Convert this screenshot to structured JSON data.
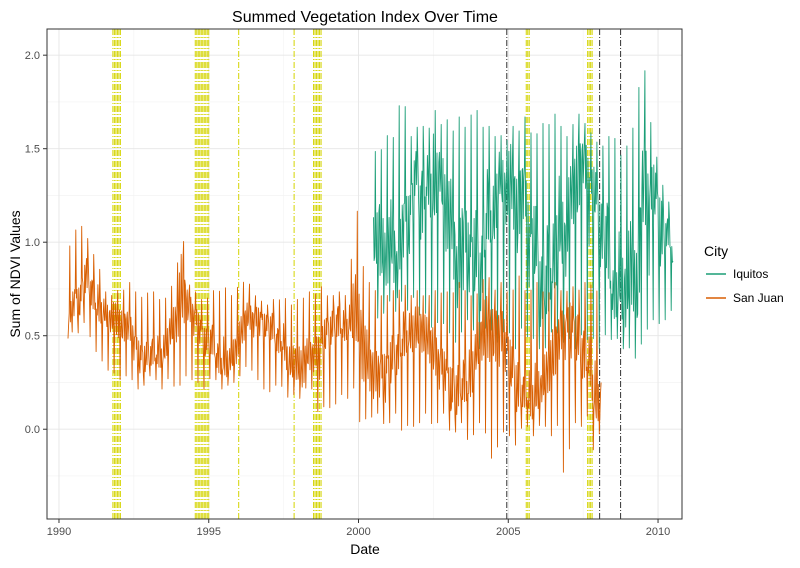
{
  "chart_data": {
    "type": "line",
    "title": "Summed Vegetation Index Over Time",
    "xlabel": "Date",
    "ylabel": "Sum of NDVI Values",
    "x_ticks": [
      1990,
      1995,
      2000,
      2005,
      2010
    ],
    "y_ticks": [
      0.0,
      0.5,
      1.0,
      1.5,
      2.0
    ],
    "y_tick_labels": [
      "0.0",
      "0.5",
      "1.0",
      "1.5",
      "2.0"
    ],
    "xlim": [
      1989.6,
      2010.8
    ],
    "ylim": [
      -0.48,
      2.14
    ],
    "grid": true,
    "legend": {
      "title": "City",
      "position": "right",
      "entries": [
        "Iquitos",
        "San Juan"
      ]
    },
    "series": [
      {
        "name": "Iquitos",
        "color": "#1b9e77",
        "x": [
          2000.5,
          2000.7,
          2000.9,
          2001.1,
          2001.3,
          2001.5,
          2001.7,
          2001.9,
          2002.1,
          2002.3,
          2002.5,
          2002.7,
          2002.9,
          2003.1,
          2003.3,
          2003.5,
          2003.7,
          2003.9,
          2004.1,
          2004.3,
          2004.5,
          2004.7,
          2004.9,
          2005.1,
          2005.3,
          2005.5,
          2005.7,
          2005.9,
          2006.1,
          2006.3,
          2006.5,
          2006.7,
          2006.9,
          2007.1,
          2007.3,
          2007.5,
          2007.7,
          2007.9,
          2008.1,
          2008.3,
          2008.5,
          2008.7,
          2008.9,
          2009.1,
          2009.3,
          2009.5,
          2009.7,
          2009.9,
          2010.1,
          2010.3,
          2010.5
        ],
        "y": [
          0.95,
          1.2,
          1.05,
          1.3,
          0.98,
          1.25,
          1.1,
          1.4,
          1.0,
          1.22,
          0.95,
          1.3,
          1.05,
          1.25,
          0.9,
          1.35,
          1.1,
          1.2,
          0.95,
          1.3,
          1.0,
          1.25,
          1.05,
          1.15,
          0.92,
          1.3,
          1.0,
          1.2,
          0.95,
          1.25,
          1.1,
          1.3,
          0.95,
          1.2,
          1.05,
          1.28,
          0.95,
          1.15,
          1.0,
          1.2,
          0.85,
          1.1,
          0.95,
          1.15,
          0.7,
          1.3,
          0.85,
          1.1,
          0.75,
          1.0,
          0.9
        ],
        "min": [
          0.7,
          0.55,
          0.65,
          0.7,
          0.6,
          0.72,
          0.6,
          0.75,
          0.55,
          0.65,
          0.5,
          0.6,
          0.55,
          0.5,
          0.45,
          0.55,
          0.6,
          0.5,
          0.4,
          0.6,
          0.5,
          0.45,
          0.55,
          0.5,
          0.4,
          0.6,
          0.45,
          0.5,
          0.4,
          0.45,
          0.55,
          0.5,
          0.45,
          0.5,
          0.4,
          0.55,
          0.45,
          0.5,
          0.4,
          0.55,
          0.45,
          0.5,
          0.4,
          0.45,
          0.35,
          0.5,
          0.55,
          0.6,
          0.55,
          0.6,
          0.65
        ],
        "max": [
          1.5,
          1.45,
          1.6,
          1.5,
          1.7,
          1.8,
          1.55,
          1.6,
          1.65,
          1.55,
          1.75,
          1.6,
          1.7,
          1.55,
          1.7,
          1.6,
          1.65,
          1.75,
          1.6,
          1.65,
          1.55,
          1.6,
          1.5,
          1.65,
          1.55,
          1.7,
          1.6,
          1.55,
          1.65,
          1.6,
          1.7,
          1.65,
          1.55,
          1.6,
          1.7,
          1.65,
          1.6,
          1.55,
          1.5,
          1.55,
          1.6,
          1.45,
          1.5,
          1.55,
          1.75,
          2.01,
          1.7,
          1.5,
          1.35,
          1.2,
          1.25
        ]
      },
      {
        "name": "San Juan",
        "color": "#d95f02",
        "x": [
          1990.3,
          1990.5,
          1990.7,
          1990.9,
          1991.1,
          1991.3,
          1991.5,
          1991.7,
          1991.9,
          1992.1,
          1992.3,
          1992.5,
          1992.7,
          1992.9,
          1993.1,
          1993.3,
          1993.5,
          1993.7,
          1993.9,
          1994.1,
          1994.3,
          1994.5,
          1994.7,
          1994.9,
          1995.1,
          1995.3,
          1995.5,
          1995.7,
          1995.9,
          1996.1,
          1996.3,
          1996.5,
          1996.7,
          1996.9,
          1997.1,
          1997.3,
          1997.5,
          1997.7,
          1997.9,
          1998.1,
          1998.3,
          1998.5,
          1998.7,
          1998.9,
          1999.1,
          1999.3,
          1999.5,
          1999.7,
          1999.9,
          2000.1,
          2000.3,
          2000.5,
          2000.7,
          2000.9,
          2001.1,
          2001.3,
          2001.5,
          2001.7,
          2001.9,
          2002.1,
          2002.3,
          2002.5,
          2002.7,
          2002.9,
          2003.1,
          2003.3,
          2003.5,
          2003.7,
          2003.9,
          2004.1,
          2004.3,
          2004.5,
          2004.7,
          2004.9,
          2005.1,
          2005.3,
          2005.5,
          2005.7,
          2005.9,
          2006.1,
          2006.3,
          2006.5,
          2006.7,
          2006.9,
          2007.1,
          2007.3,
          2007.5,
          2007.7,
          2007.9,
          2008.1
        ],
        "y": [
          0.6,
          0.8,
          0.75,
          0.9,
          0.75,
          0.6,
          0.55,
          0.5,
          0.5,
          0.48,
          0.55,
          0.5,
          0.45,
          0.48,
          0.52,
          0.5,
          0.45,
          0.5,
          0.48,
          0.52,
          0.55,
          0.5,
          0.48,
          0.45,
          0.55,
          0.48,
          0.52,
          0.45,
          0.5,
          0.55,
          0.58,
          0.5,
          0.48,
          0.45,
          0.48,
          0.45,
          0.5,
          0.42,
          0.48,
          0.45,
          0.5,
          0.45,
          0.4,
          0.45,
          0.45,
          0.48,
          0.45,
          0.5,
          0.55,
          0.55,
          0.5,
          0.45,
          0.45,
          0.4,
          0.45,
          0.4,
          0.45,
          0.4,
          0.38,
          0.4,
          0.42,
          0.4,
          0.38,
          0.4,
          0.35,
          0.38,
          0.4,
          0.35,
          0.38,
          0.4,
          0.35,
          0.3,
          0.32,
          0.35,
          0.3,
          0.28,
          0.32,
          0.35,
          0.38,
          0.3,
          0.35,
          0.32,
          0.38,
          0.35,
          0.3,
          0.35,
          0.32,
          0.4,
          0.3,
          0.25
        ],
        "min": [
          0.45,
          0.55,
          0.5,
          0.6,
          0.45,
          0.4,
          0.35,
          0.3,
          0.3,
          0.25,
          0.3,
          0.25,
          0.2,
          0.25,
          0.3,
          0.25,
          0.2,
          0.3,
          0.2,
          0.25,
          0.3,
          0.25,
          0.25,
          0.2,
          0.3,
          0.25,
          0.2,
          0.25,
          0.25,
          0.3,
          0.35,
          0.3,
          0.25,
          0.2,
          0.2,
          0.25,
          0.22,
          0.15,
          0.2,
          0.15,
          0.25,
          0.2,
          0.05,
          0.15,
          0.1,
          0.15,
          0.2,
          0.15,
          0.25,
          -0.05,
          0.1,
          0.05,
          0.1,
          0.0,
          0.05,
          0.1,
          -0.05,
          0.05,
          0.0,
          0.05,
          0.1,
          0.0,
          0.05,
          0.1,
          -0.05,
          0.0,
          0.05,
          -0.1,
          0.0,
          0.05,
          -0.05,
          -0.2,
          -0.05,
          0.0,
          -0.05,
          -0.1,
          0.05,
          0.0,
          -0.05,
          0.05,
          0.0,
          -0.05,
          0.05,
          -0.35,
          0.0,
          0.05,
          0.0,
          0.1,
          -0.2,
          0.05
        ],
        "max": [
          0.95,
          1.05,
          1.1,
          1.05,
          0.95,
          0.9,
          0.75,
          0.7,
          0.75,
          0.72,
          0.8,
          0.75,
          0.7,
          0.72,
          0.75,
          0.7,
          0.68,
          0.75,
          0.8,
          1.1,
          0.78,
          0.75,
          0.7,
          0.68,
          0.75,
          0.72,
          0.78,
          0.7,
          0.75,
          0.78,
          0.8,
          0.72,
          0.7,
          0.65,
          0.7,
          0.68,
          0.72,
          0.65,
          0.7,
          0.68,
          0.75,
          0.7,
          0.78,
          0.72,
          0.7,
          0.75,
          0.7,
          0.75,
          1.28,
          0.9,
          0.8,
          0.75,
          0.72,
          0.7,
          0.75,
          0.72,
          0.8,
          0.7,
          0.75,
          0.72,
          0.7,
          0.75,
          0.72,
          0.75,
          0.7,
          0.8,
          0.75,
          0.72,
          0.7,
          0.78,
          0.85,
          0.72,
          0.8,
          0.75,
          0.7,
          0.85,
          0.75,
          0.72,
          0.8,
          0.75,
          0.7,
          0.8,
          0.75,
          0.72,
          0.78,
          0.72,
          0.8,
          0.75,
          0.82,
          0.55
        ]
      }
    ],
    "reference_lines": [
      {
        "color": "#d4d400",
        "style": "dotdash",
        "x": [
          1991.8,
          1991.85,
          1991.9,
          1991.95,
          1992.0,
          1992.05,
          1994.55,
          1994.6,
          1994.65,
          1994.7,
          1994.75,
          1994.8,
          1994.85,
          1994.9,
          1994.95,
          1995.0,
          1996.0,
          1997.85,
          1998.5,
          1998.55,
          1998.6,
          1998.65,
          1998.7,
          1998.75,
          2005.6,
          2005.65,
          2005.7,
          2007.65,
          2007.7,
          2007.75,
          2007.8
        ]
      },
      {
        "color": "#333333",
        "style": "dotdash",
        "x": [
          2004.95,
          2008.05,
          2008.75
        ]
      }
    ]
  }
}
